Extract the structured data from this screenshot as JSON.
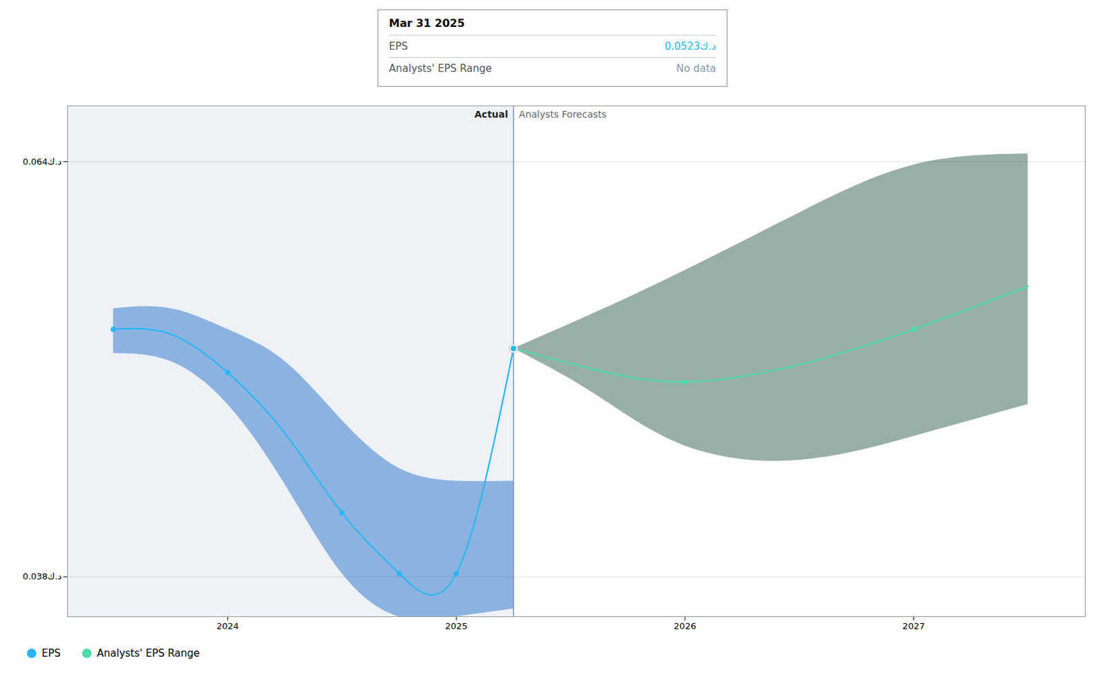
{
  "chart_data": {
    "type": "line",
    "xlim": [
      2023.3,
      2027.75
    ],
    "xticks": [
      2024,
      2025,
      2026,
      2027
    ],
    "ylim": [
      0.0355,
      0.0675
    ],
    "yticks": [
      {
        "value": 0.038,
        "label": "0.038د.ك"
      },
      {
        "value": 0.064,
        "label": "0.064د.ك"
      }
    ],
    "grid": true,
    "legend": "bottom-left",
    "regions": [
      {
        "label": "Actual",
        "x": [
          2023.3,
          2025.25
        ]
      },
      {
        "label": "Analysts Forecasts",
        "x": [
          2025.25,
          2027.75
        ]
      }
    ],
    "series": [
      {
        "name": "EPS",
        "color": "#29b6f6",
        "marker": "circle",
        "x": [
          2023.5,
          2023.75,
          2024.0,
          2024.25,
          2024.5,
          2024.75,
          2025.0,
          2025.25
        ],
        "values": [
          0.0535,
          0.0532,
          0.0508,
          0.047,
          0.042,
          0.0382,
          0.0382,
          0.0523
        ],
        "marker_x": [
          2023.5,
          2024.0,
          2024.5,
          2024.75,
          2025.0
        ],
        "band": {
          "color": "#1565c0",
          "upper": [
            0.0548,
            0.0548,
            0.0535,
            0.0515,
            0.0478,
            0.0448,
            0.044,
            0.044
          ],
          "lower": [
            0.052,
            0.0515,
            0.0488,
            0.0438,
            0.0382,
            0.0355,
            0.0355,
            0.036
          ]
        }
      },
      {
        "name": "Analysts' EPS Range",
        "color": "#4dd9ac",
        "marker": "circle",
        "x": [
          2025.25,
          2025.6,
          2026.0,
          2026.5,
          2027.0,
          2027.5
        ],
        "values": [
          0.0523,
          0.051,
          0.0502,
          0.0513,
          0.0535,
          0.0562
        ],
        "marker_x": [
          2026.0,
          2027.0
        ],
        "band": {
          "color": "#1b4d3e",
          "upper": [
            0.0523,
            0.0545,
            0.0572,
            0.0608,
            0.0638,
            0.0645
          ],
          "lower": [
            0.0523,
            0.0495,
            0.0462,
            0.0453,
            0.0468,
            0.0488
          ]
        }
      }
    ],
    "highlight": {
      "x": 2025.25,
      "y": 0.0523
    },
    "tooltip": {
      "title": "Mar 31 2025",
      "rows": [
        {
          "label": "EPS",
          "value": "0.0523د.ك",
          "color": "#29b6f6"
        },
        {
          "label": "Analysts' EPS Range",
          "value": "No data",
          "color": "#8899aa"
        }
      ]
    }
  }
}
